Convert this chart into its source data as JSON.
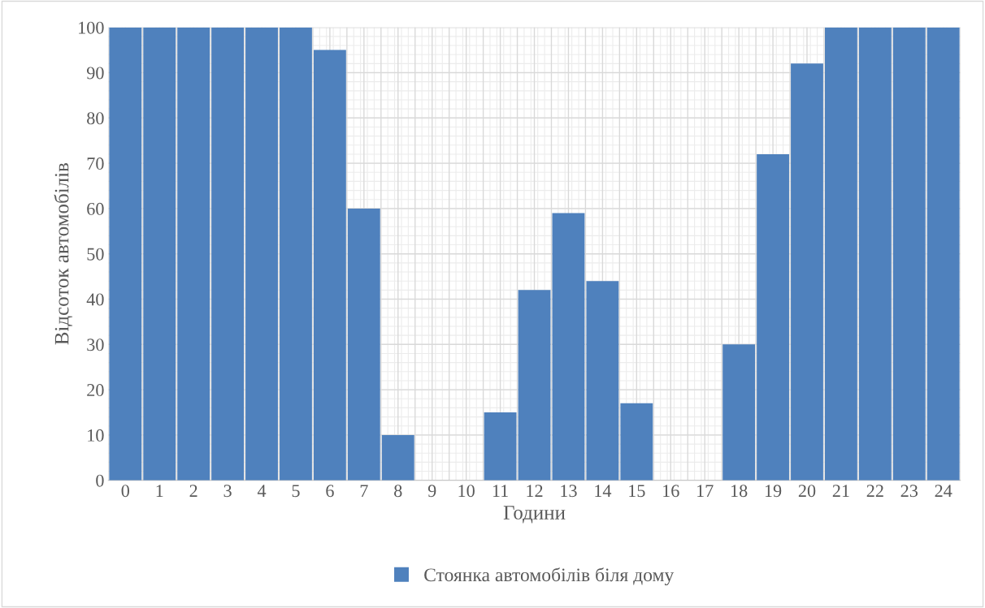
{
  "chart_data": {
    "type": "bar",
    "xlabel": "Години",
    "ylabel": "Відсоток автомобілів",
    "categories": [
      "0",
      "1",
      "2",
      "3",
      "4",
      "5",
      "6",
      "7",
      "8",
      "9",
      "10",
      "11",
      "12",
      "13",
      "14",
      "15",
      "16",
      "17",
      "18",
      "19",
      "20",
      "21",
      "22",
      "23",
      "24"
    ],
    "series": [
      {
        "name": "Стоянка автомобілів біля дому",
        "color": "#4f81bd",
        "values": [
          100,
          100,
          100,
          100,
          100,
          100,
          95,
          60,
          10,
          0,
          0,
          15,
          42,
          59,
          44,
          17,
          0,
          0,
          30,
          72,
          92,
          100,
          100,
          100,
          100
        ]
      }
    ],
    "ylim": [
      0,
      100
    ],
    "yticks": [
      0,
      10,
      20,
      30,
      40,
      50,
      60,
      70,
      80,
      90,
      100
    ],
    "grid": true,
    "legend": "bottom"
  }
}
